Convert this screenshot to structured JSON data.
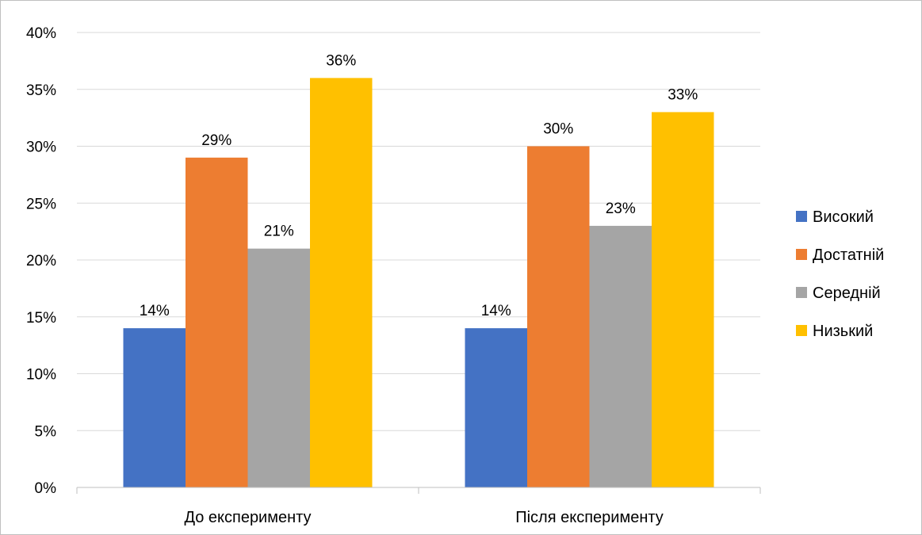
{
  "chart_data": {
    "type": "bar",
    "categories": [
      "До експерименту",
      "Після експерименту"
    ],
    "series": [
      {
        "name": "Високий",
        "color": "#4472c4",
        "values": [
          14,
          14
        ]
      },
      {
        "name": "Достатній",
        "color": "#ed7d31",
        "values": [
          29,
          30
        ]
      },
      {
        "name": "Середній",
        "color": "#a5a5a5",
        "values": [
          21,
          23
        ]
      },
      {
        "name": "Низький",
        "color": "#ffc000",
        "values": [
          36,
          33
        ]
      }
    ],
    "ylim": [
      0,
      40
    ],
    "yticks": [
      0,
      5,
      10,
      15,
      20,
      25,
      30,
      35,
      40
    ],
    "ytick_format": "%",
    "data_label_format": "%",
    "grid": true,
    "legend_position": "right",
    "gridline_color": "#d9d9d9",
    "axis_color": "#bfbfbf"
  }
}
